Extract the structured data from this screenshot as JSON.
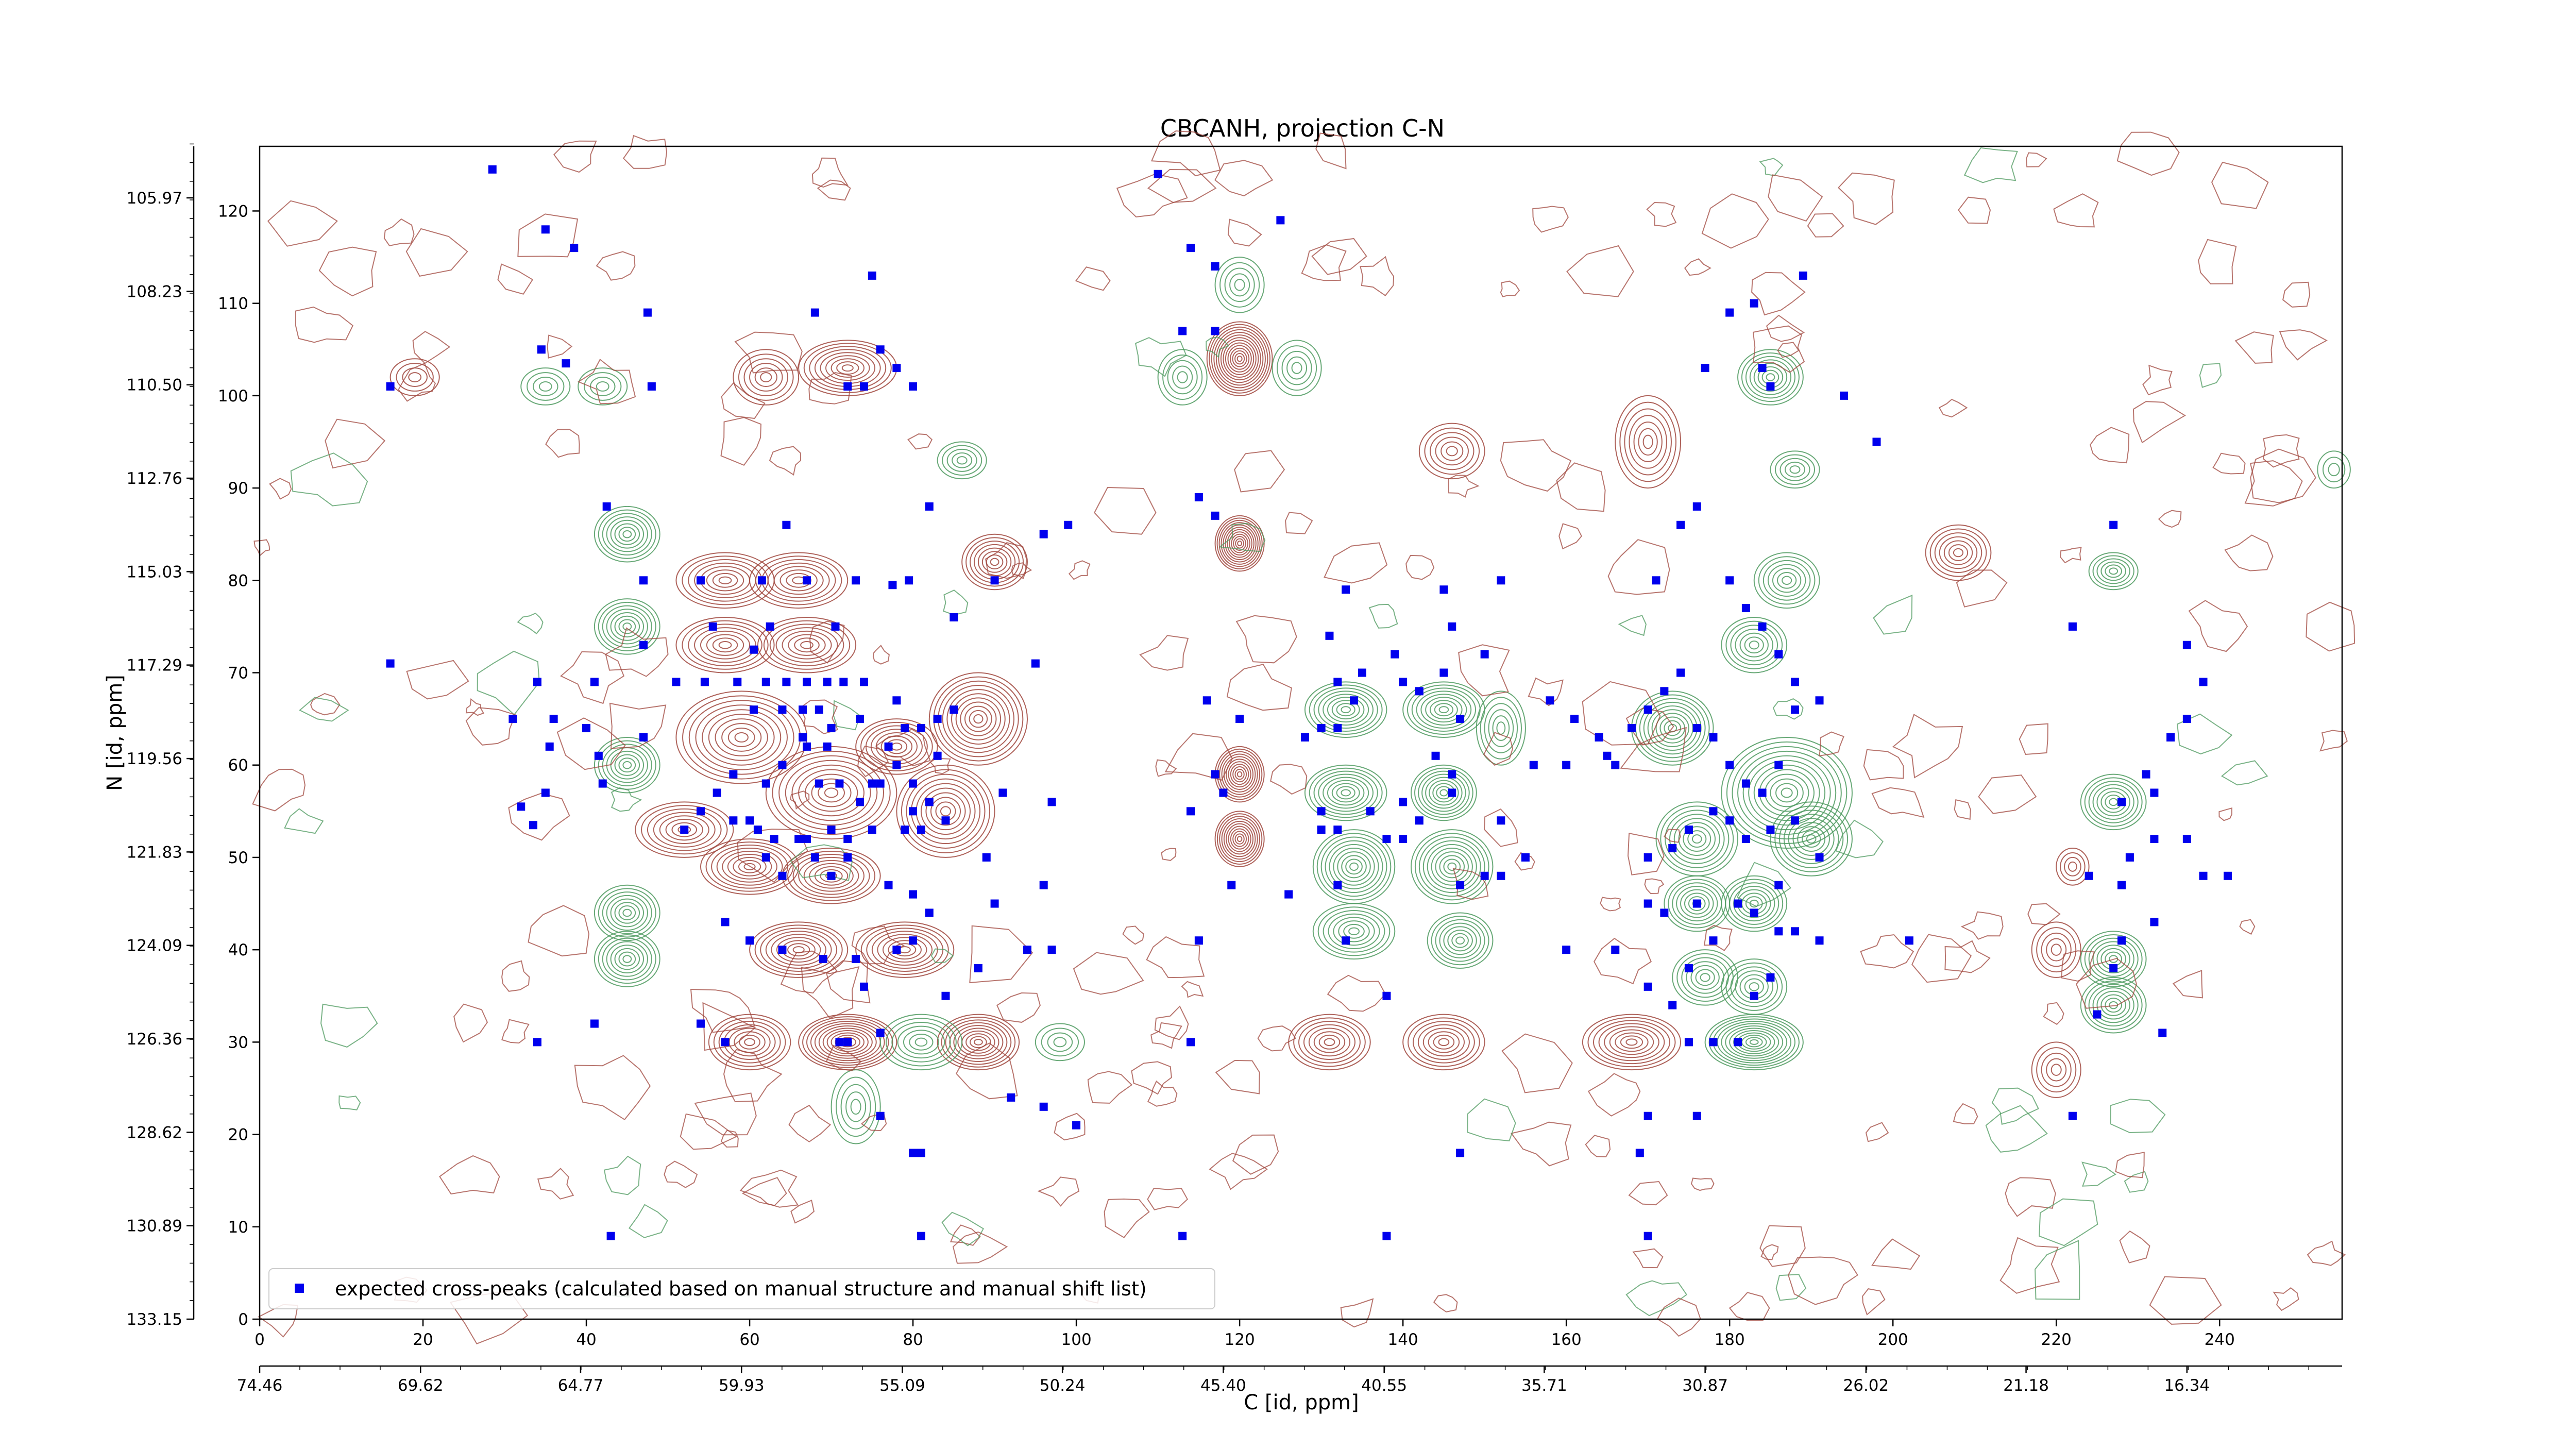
{
  "chart_data": {
    "type": "scatter",
    "title": "CBCANH, projection C-N",
    "xlabel": "C [id, ppm]",
    "ylabel": "N [id, ppm]",
    "xlim": [
      0,
      255
    ],
    "ylim": [
      0,
      127
    ],
    "x_ticks": [
      0,
      20,
      40,
      60,
      80,
      100,
      120,
      140,
      160,
      180,
      200,
      220,
      240
    ],
    "y_ticks": [
      0,
      10,
      20,
      30,
      40,
      50,
      60,
      70,
      80,
      90,
      100,
      110,
      120
    ],
    "x_ppm_ticks": [
      {
        "at": 0,
        "label": "74.46"
      },
      {
        "at": 19.7,
        "label": "69.62"
      },
      {
        "at": 39.3,
        "label": "64.77"
      },
      {
        "at": 59.0,
        "label": "59.93"
      },
      {
        "at": 78.7,
        "label": "55.09"
      },
      {
        "at": 98.3,
        "label": "50.24"
      },
      {
        "at": 118.0,
        "label": "45.40"
      },
      {
        "at": 137.7,
        "label": "40.55"
      },
      {
        "at": 157.3,
        "label": "35.71"
      },
      {
        "at": 177.0,
        "label": "30.87"
      },
      {
        "at": 196.7,
        "label": "26.02"
      },
      {
        "at": 216.3,
        "label": "21.18"
      },
      {
        "at": 236.0,
        "label": "16.34"
      }
    ],
    "y_ppm_ticks": [
      {
        "at": 0,
        "label": "133.15"
      },
      {
        "at": 12.22,
        "label": "130.89"
      },
      {
        "at": 24.44,
        "label": "128.62"
      },
      {
        "at": 36.67,
        "label": "126.36"
      },
      {
        "at": 48.89,
        "label": "124.09"
      },
      {
        "at": 61.11,
        "label": "121.83"
      },
      {
        "at": 73.33,
        "label": "119.56"
      },
      {
        "at": 85.56,
        "label": "117.29"
      },
      {
        "at": 97.78,
        "label": "115.03"
      },
      {
        "at": 110.0,
        "label": "112.76"
      },
      {
        "at": 122.22,
        "label": "110.50"
      },
      {
        "at": 134.44,
        "label": "108.23"
      },
      {
        "at": 146.67,
        "label": "105.97"
      }
    ],
    "legend": {
      "location": "lower-left",
      "label": "expected cross-peaks (calculated based on manual structure and manual shift list)"
    },
    "colors": {
      "positive_contour": "#a0473d",
      "negative_contour": "#4e9a5f",
      "marker": "#0000ee"
    },
    "series": [
      {
        "name": "expected cross-peaks (calculated based on manual structure and manual shift list)",
        "points": [
          [
            28.5,
            124.5
          ],
          [
            35,
            118
          ],
          [
            38.5,
            116
          ],
          [
            47.5,
            109
          ],
          [
            37.5,
            103.5
          ],
          [
            16,
            101
          ],
          [
            48,
            101
          ],
          [
            34.5,
            105
          ],
          [
            42.5,
            88
          ],
          [
            47,
            80
          ],
          [
            54,
            80
          ],
          [
            61.5,
            80
          ],
          [
            67,
            80
          ],
          [
            73,
            80
          ],
          [
            77.5,
            79.5
          ],
          [
            79.5,
            80
          ],
          [
            64.5,
            86
          ],
          [
            55.5,
            75
          ],
          [
            62.5,
            75
          ],
          [
            70.5,
            75
          ],
          [
            60.5,
            72.5
          ],
          [
            47,
            73
          ],
          [
            16,
            71
          ],
          [
            41,
            69
          ],
          [
            34,
            69
          ],
          [
            31,
            65
          ],
          [
            36,
            65
          ],
          [
            40,
            64
          ],
          [
            47,
            63
          ],
          [
            41.5,
            61
          ],
          [
            35.5,
            62
          ],
          [
            42,
            58
          ],
          [
            35,
            57
          ],
          [
            32,
            55.5
          ],
          [
            33.5,
            53.5
          ],
          [
            51,
            69
          ],
          [
            54.5,
            69
          ],
          [
            58.5,
            69
          ],
          [
            62,
            69
          ],
          [
            64.5,
            69
          ],
          [
            67,
            69
          ],
          [
            69.5,
            69
          ],
          [
            71.5,
            69
          ],
          [
            74,
            69
          ],
          [
            60.5,
            66
          ],
          [
            64,
            66
          ],
          [
            66.5,
            66
          ],
          [
            68.5,
            66
          ],
          [
            70,
            64
          ],
          [
            73.5,
            65
          ],
          [
            66.5,
            63
          ],
          [
            67,
            62
          ],
          [
            69.5,
            62
          ],
          [
            64,
            60
          ],
          [
            68.5,
            58
          ],
          [
            71,
            58
          ],
          [
            73.5,
            56
          ],
          [
            76,
            58
          ],
          [
            78,
            60
          ],
          [
            80,
            58
          ],
          [
            82,
            56
          ],
          [
            84,
            54
          ],
          [
            62,
            58
          ],
          [
            58,
            54
          ],
          [
            61,
            53
          ],
          [
            63,
            52
          ],
          [
            67,
            52
          ],
          [
            70,
            53
          ],
          [
            72,
            52
          ],
          [
            75,
            53
          ],
          [
            79,
            53
          ],
          [
            81,
            53
          ],
          [
            52,
            53
          ],
          [
            54,
            55
          ],
          [
            56,
            57
          ],
          [
            58,
            59
          ],
          [
            60,
            54
          ],
          [
            62,
            50
          ],
          [
            64,
            48
          ],
          [
            66,
            52
          ],
          [
            68,
            50
          ],
          [
            70,
            48
          ],
          [
            72,
            50
          ],
          [
            77,
            47
          ],
          [
            80,
            46
          ],
          [
            82,
            44
          ],
          [
            57,
            43
          ],
          [
            60,
            41
          ],
          [
            64,
            40
          ],
          [
            69,
            39
          ],
          [
            73,
            39
          ],
          [
            78,
            40
          ],
          [
            80,
            41
          ],
          [
            74,
            36
          ],
          [
            76,
            31
          ],
          [
            72,
            30
          ],
          [
            71,
            30
          ],
          [
            57,
            30
          ],
          [
            34,
            30
          ],
          [
            41,
            32
          ],
          [
            54,
            32
          ],
          [
            84,
            35
          ],
          [
            88,
            38
          ],
          [
            90,
            45
          ],
          [
            94,
            40
          ],
          [
            97,
            40
          ],
          [
            96,
            47
          ],
          [
            89,
            50
          ],
          [
            91,
            57
          ],
          [
            97,
            56
          ],
          [
            95,
            71
          ],
          [
            85,
            76
          ],
          [
            90,
            80
          ],
          [
            96,
            85
          ],
          [
            99,
            86
          ],
          [
            82,
            88
          ],
          [
            78,
            103
          ],
          [
            76,
            105
          ],
          [
            72,
            101
          ],
          [
            74,
            101
          ],
          [
            75,
            113
          ],
          [
            68,
            109
          ],
          [
            80,
            101
          ],
          [
            83,
            65
          ],
          [
            85,
            66
          ],
          [
            81,
            64
          ],
          [
            79,
            64
          ],
          [
            83,
            61
          ],
          [
            80,
            55
          ],
          [
            77,
            62
          ],
          [
            75,
            58
          ],
          [
            78,
            67
          ],
          [
            110,
            124
          ],
          [
            114,
            116
          ],
          [
            117,
            114
          ],
          [
            113,
            107
          ],
          [
            117,
            107
          ],
          [
            125,
            119
          ],
          [
            115,
            89
          ],
          [
            117,
            87
          ],
          [
            117,
            59
          ],
          [
            118,
            57
          ],
          [
            114,
            55
          ],
          [
            120,
            65
          ],
          [
            116,
            67
          ],
          [
            119,
            47
          ],
          [
            115,
            41
          ],
          [
            114,
            30
          ],
          [
            128,
            63
          ],
          [
            130,
            64
          ],
          [
            132,
            64
          ],
          [
            134,
            67
          ],
          [
            132,
            69
          ],
          [
            131,
            74
          ],
          [
            133,
            79
          ],
          [
            139,
            72
          ],
          [
            145,
            70
          ],
          [
            147,
            65
          ],
          [
            144,
            61
          ],
          [
            146,
            57
          ],
          [
            140,
            56
          ],
          [
            136,
            55
          ],
          [
            132,
            53
          ],
          [
            130,
            53
          ],
          [
            130,
            55
          ],
          [
            140,
            52
          ],
          [
            142,
            54
          ],
          [
            138,
            52
          ],
          [
            150,
            48
          ],
          [
            152,
            48
          ],
          [
            155,
            50
          ],
          [
            146,
            59
          ],
          [
            146,
            75
          ],
          [
            142,
            68
          ],
          [
            140,
            69
          ],
          [
            135,
            70
          ],
          [
            150,
            72
          ],
          [
            152,
            80
          ],
          [
            145,
            79
          ],
          [
            132,
            47
          ],
          [
            126,
            46
          ],
          [
            133,
            41
          ],
          [
            138,
            35
          ],
          [
            147,
            47
          ],
          [
            160,
            40
          ],
          [
            166,
            40
          ],
          [
            170,
            36
          ],
          [
            175,
            30
          ],
          [
            178,
            30
          ],
          [
            181,
            30
          ],
          [
            176,
            22
          ],
          [
            170,
            22
          ],
          [
            169,
            18
          ],
          [
            147,
            18
          ],
          [
            138,
            9
          ],
          [
            113,
            9
          ],
          [
            43,
            9
          ],
          [
            81,
            9
          ],
          [
            170,
            9
          ],
          [
            92,
            24
          ],
          [
            76,
            22
          ],
          [
            80,
            18
          ],
          [
            81,
            18
          ],
          [
            96,
            23
          ],
          [
            100,
            21
          ],
          [
            158,
            67
          ],
          [
            161,
            65
          ],
          [
            164,
            63
          ],
          [
            165,
            61
          ],
          [
            166,
            60
          ],
          [
            168,
            64
          ],
          [
            170,
            66
          ],
          [
            172,
            68
          ],
          [
            174,
            70
          ],
          [
            176,
            64
          ],
          [
            178,
            63
          ],
          [
            180,
            60
          ],
          [
            182,
            58
          ],
          [
            184,
            57
          ],
          [
            178,
            55
          ],
          [
            175,
            53
          ],
          [
            173,
            51
          ],
          [
            170,
            50
          ],
          [
            180,
            54
          ],
          [
            182,
            52
          ],
          [
            185,
            53
          ],
          [
            188,
            54
          ],
          [
            186,
            60
          ],
          [
            188,
            66
          ],
          [
            191,
            67
          ],
          [
            188,
            69
          ],
          [
            186,
            72
          ],
          [
            184,
            75
          ],
          [
            182,
            77
          ],
          [
            180,
            80
          ],
          [
            176,
            88
          ],
          [
            174,
            86
          ],
          [
            171,
            80
          ],
          [
            160,
            60
          ],
          [
            152,
            54
          ],
          [
            156,
            60
          ],
          [
            170,
            45
          ],
          [
            176,
            45
          ],
          [
            181,
            45
          ],
          [
            183,
            44
          ],
          [
            186,
            42
          ],
          [
            188,
            42
          ],
          [
            191,
            41
          ],
          [
            202,
            41
          ],
          [
            186,
            47
          ],
          [
            191,
            50
          ],
          [
            172,
            44
          ],
          [
            173,
            34
          ],
          [
            183,
            35
          ],
          [
            185,
            37
          ],
          [
            175,
            38
          ],
          [
            178,
            41
          ],
          [
            184,
            103
          ],
          [
            185,
            101
          ],
          [
            177,
            103
          ],
          [
            183,
            110
          ],
          [
            189,
            113
          ],
          [
            194,
            100
          ],
          [
            180,
            109
          ],
          [
            198,
            95
          ],
          [
            227,
            86
          ],
          [
            222,
            75
          ],
          [
            236,
            73
          ],
          [
            238,
            69
          ],
          [
            236,
            65
          ],
          [
            234,
            63
          ],
          [
            231,
            59
          ],
          [
            232,
            57
          ],
          [
            228,
            56
          ],
          [
            232,
            52
          ],
          [
            236,
            52
          ],
          [
            229,
            50
          ],
          [
            224,
            48
          ],
          [
            228,
            47
          ],
          [
            232,
            43
          ],
          [
            228,
            41
          ],
          [
            227,
            38
          ],
          [
            225,
            33
          ],
          [
            233,
            31
          ],
          [
            222,
            22
          ],
          [
            238,
            48
          ],
          [
            241,
            48
          ]
        ]
      }
    ]
  }
}
